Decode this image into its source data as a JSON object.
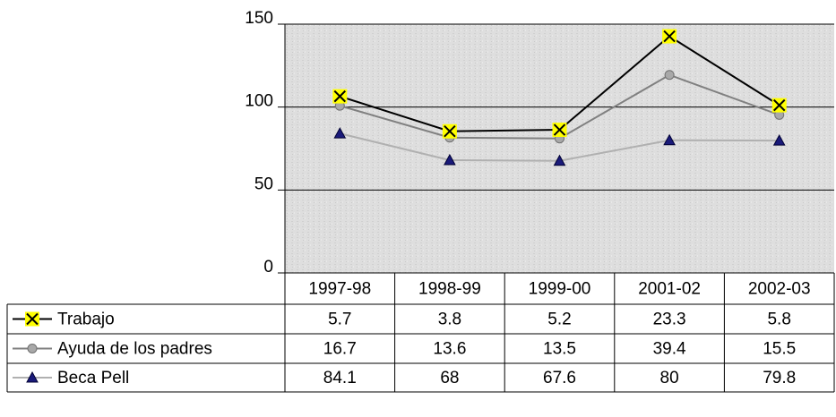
{
  "chart_data": {
    "type": "line",
    "stacked": true,
    "categories": [
      "1997-98",
      "1998-99",
      "1999-00",
      "2001-02",
      "2002-03"
    ],
    "series": [
      {
        "name": "Trabajo",
        "color": "#000000",
        "marker": "x-square",
        "values": [
          5.7,
          3.8,
          5.2,
          23.3,
          5.8
        ]
      },
      {
        "name": "Ayuda de los padres",
        "color": "#808080",
        "marker": "circle",
        "values": [
          16.7,
          13.6,
          13.5,
          39.4,
          15.5
        ]
      },
      {
        "name": "Beca Pell",
        "color": "#b0b0b0",
        "marker": "triangle",
        "values": [
          84.1,
          68,
          67.6,
          80,
          79.8
        ]
      }
    ],
    "ylim": [
      0,
      150
    ],
    "yticks": [
      0,
      50,
      100,
      150
    ],
    "grid": true,
    "data_table": true
  }
}
